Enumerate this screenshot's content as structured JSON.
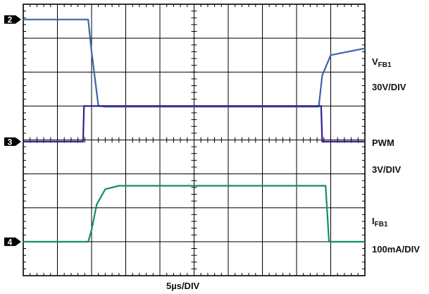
{
  "chart_data": {
    "type": "line",
    "title": "",
    "xlabel": "5µs/DIV",
    "x_divisions": 10,
    "y_divisions": 8,
    "xlim": [
      0,
      10
    ],
    "ylim": [
      0,
      8
    ],
    "grid": true,
    "series": [
      {
        "name_main": "V",
        "name_sub": "FB1",
        "scale": "30V/DIV",
        "marker": "2",
        "color": "#3c64a8",
        "x": [
          0,
          1.9,
          2.0,
          2.2,
          2.4,
          8.65,
          8.75,
          9.0,
          10.0
        ],
        "y": [
          7.55,
          7.55,
          6.6,
          5.0,
          4.98,
          4.98,
          5.9,
          6.5,
          6.7
        ]
      },
      {
        "name": "PWM",
        "scale": "3V/DIV",
        "marker": "3",
        "color": "#3a1a8e",
        "x": [
          0,
          1.75,
          1.78,
          8.72,
          8.75,
          10.0
        ],
        "y": [
          3.95,
          3.95,
          5.0,
          5.0,
          3.95,
          3.95
        ]
      },
      {
        "name_main": "I",
        "name_sub": "FB1",
        "scale": "100mA/DIV",
        "marker": "4",
        "color": "#13905a",
        "x": [
          0,
          1.9,
          2.0,
          2.15,
          2.4,
          2.8,
          8.85,
          8.95,
          10.0
        ],
        "y": [
          1.0,
          1.0,
          1.35,
          2.1,
          2.55,
          2.65,
          2.65,
          1.0,
          1.0
        ]
      }
    ]
  }
}
